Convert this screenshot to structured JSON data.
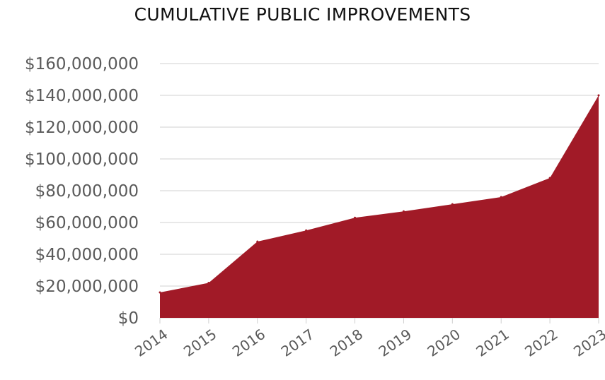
{
  "chart_data": {
    "type": "area",
    "title": "CUMULATIVE PUBLIC IMPROVEMENTS",
    "xlabel": "",
    "ylabel": "",
    "x": [
      "2014",
      "2015",
      "2016",
      "2017",
      "2018",
      "2019",
      "2020",
      "2021",
      "2022",
      "2023"
    ],
    "series": [
      {
        "values": [
          16000000,
          22000000,
          48000000,
          55000000,
          63000000,
          67000000,
          71500000,
          76000000,
          88000000,
          140000000
        ]
      }
    ],
    "ylim": [
      0,
      160000000
    ],
    "yticks": [
      0,
      20000000,
      40000000,
      60000000,
      80000000,
      100000000,
      120000000,
      140000000,
      160000000
    ],
    "ytick_labels": [
      "$0",
      "$20,000,000",
      "$40,000,000",
      "$60,000,000",
      "$80,000,000",
      "$100,000,000",
      "$120,000,000",
      "$140,000,000",
      "$160,000,000"
    ],
    "fill_color": "#a11a27",
    "grid": true,
    "legend": "none"
  }
}
